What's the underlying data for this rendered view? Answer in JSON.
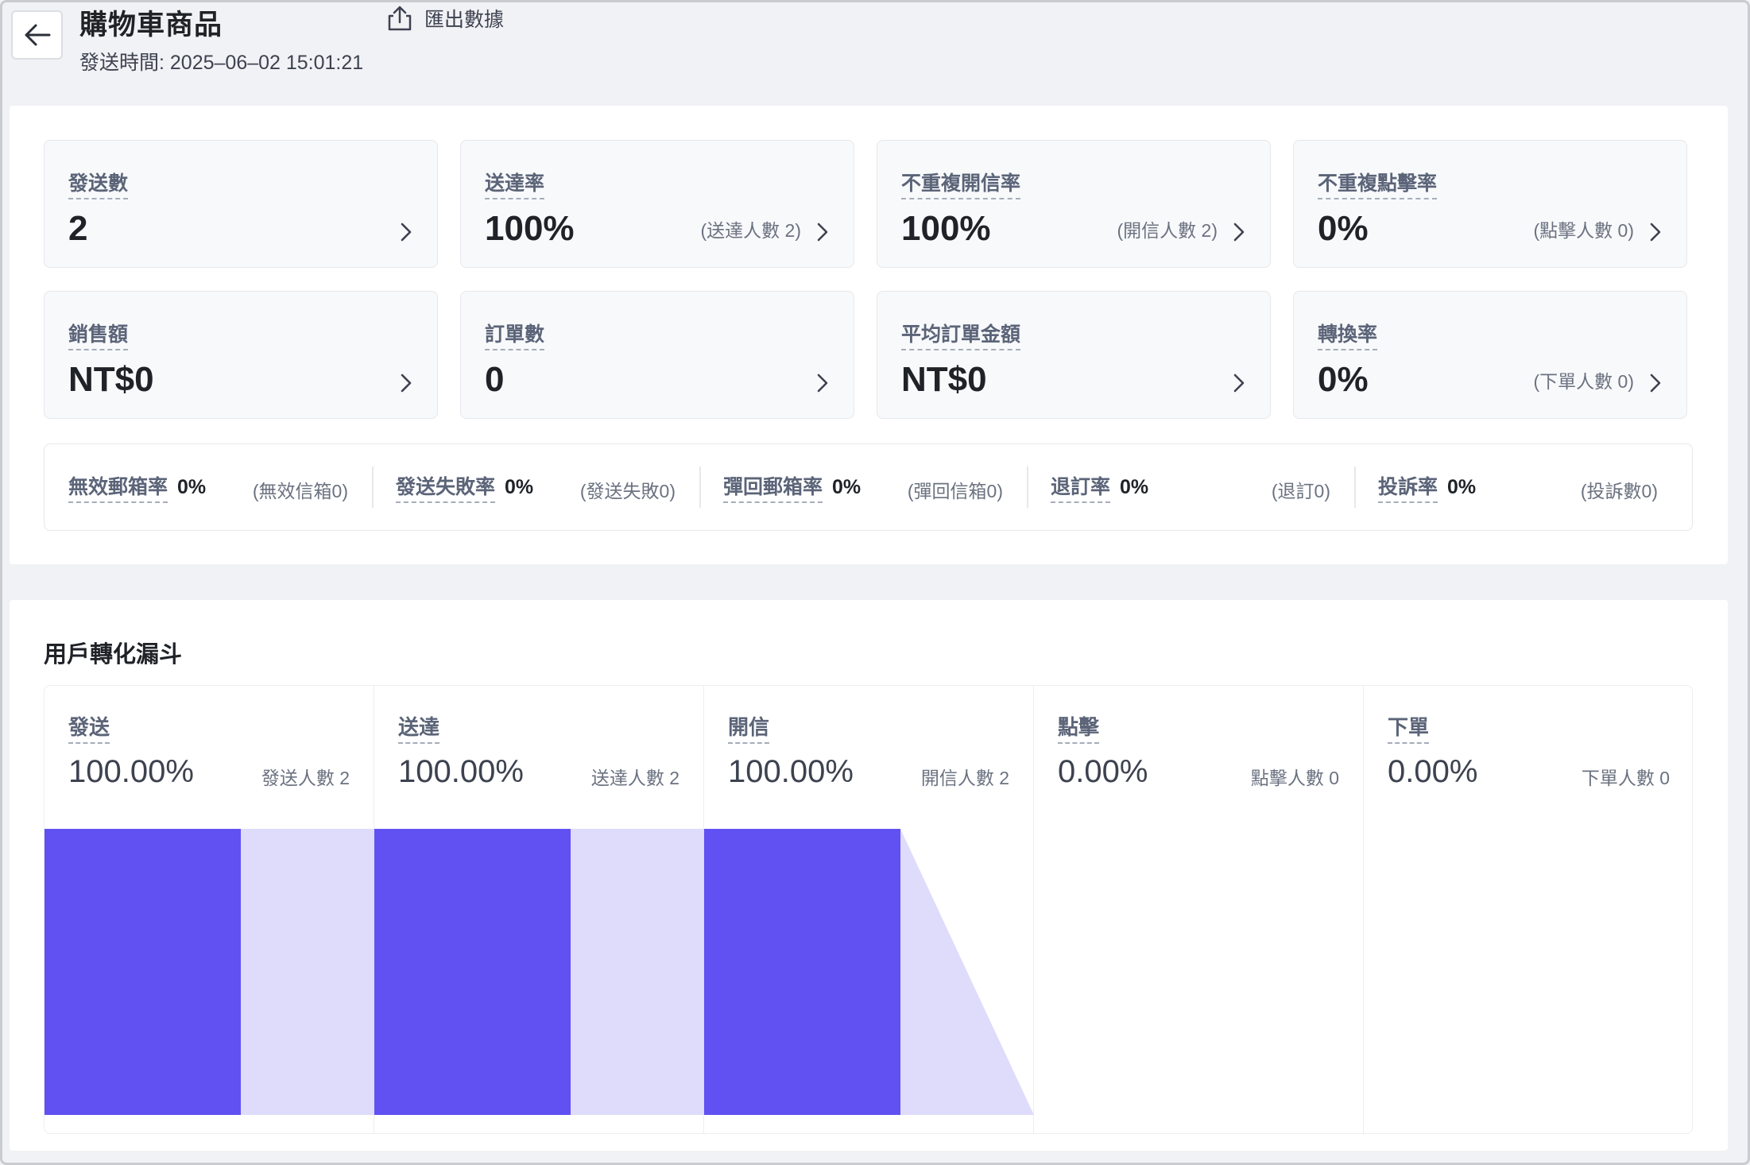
{
  "header": {
    "back_icon": "arrow-left-icon",
    "title": "購物車商品",
    "send_time": "發送時間: 2025–06–02 15:01:21",
    "export_label": "匯出數據",
    "export_icon": "share-export-icon"
  },
  "cards": [
    {
      "label": "發送數",
      "value": "2",
      "note": ""
    },
    {
      "label": "送達率",
      "value": "100%",
      "note": "(送達人數 2)"
    },
    {
      "label": "不重複開信率",
      "value": "100%",
      "note": "(開信人數 2)"
    },
    {
      "label": "不重複點擊率",
      "value": "0%",
      "note": "(點擊人數 0)"
    },
    {
      "label": "銷售額",
      "value": "NT$0",
      "note": ""
    },
    {
      "label": "訂單數",
      "value": "0",
      "note": ""
    },
    {
      "label": "平均訂單金額",
      "value": "NT$0",
      "note": ""
    },
    {
      "label": "轉換率",
      "value": "0%",
      "note": "(下單人數 0)"
    }
  ],
  "metrics": [
    {
      "label": "無效郵箱率",
      "value": "0%",
      "note": "(無效信箱0)"
    },
    {
      "label": "發送失敗率",
      "value": "0%",
      "note": "(發送失敗0)"
    },
    {
      "label": "彈回郵箱率",
      "value": "0%",
      "note": "(彈回信箱0)"
    },
    {
      "label": "退訂率",
      "value": "0%",
      "note": "(退訂0)"
    },
    {
      "label": "投訴率",
      "value": "0%",
      "note": "(投訴數0)"
    }
  ],
  "funnel": {
    "title": "用戶轉化漏斗",
    "colors": {
      "bar": "#6150f2",
      "connector": "#dedbfb"
    },
    "stages": [
      {
        "label": "發送",
        "rate": "100.00%",
        "people": "發送人數 2",
        "fraction": 1.0
      },
      {
        "label": "送達",
        "rate": "100.00%",
        "people": "送達人數 2",
        "fraction": 1.0
      },
      {
        "label": "開信",
        "rate": "100.00%",
        "people": "開信人數 2",
        "fraction": 1.0
      },
      {
        "label": "點擊",
        "rate": "0.00%",
        "people": "點擊人數 0",
        "fraction": 0.0
      },
      {
        "label": "下單",
        "rate": "0.00%",
        "people": "下單人數 0",
        "fraction": 0.0
      }
    ]
  }
}
